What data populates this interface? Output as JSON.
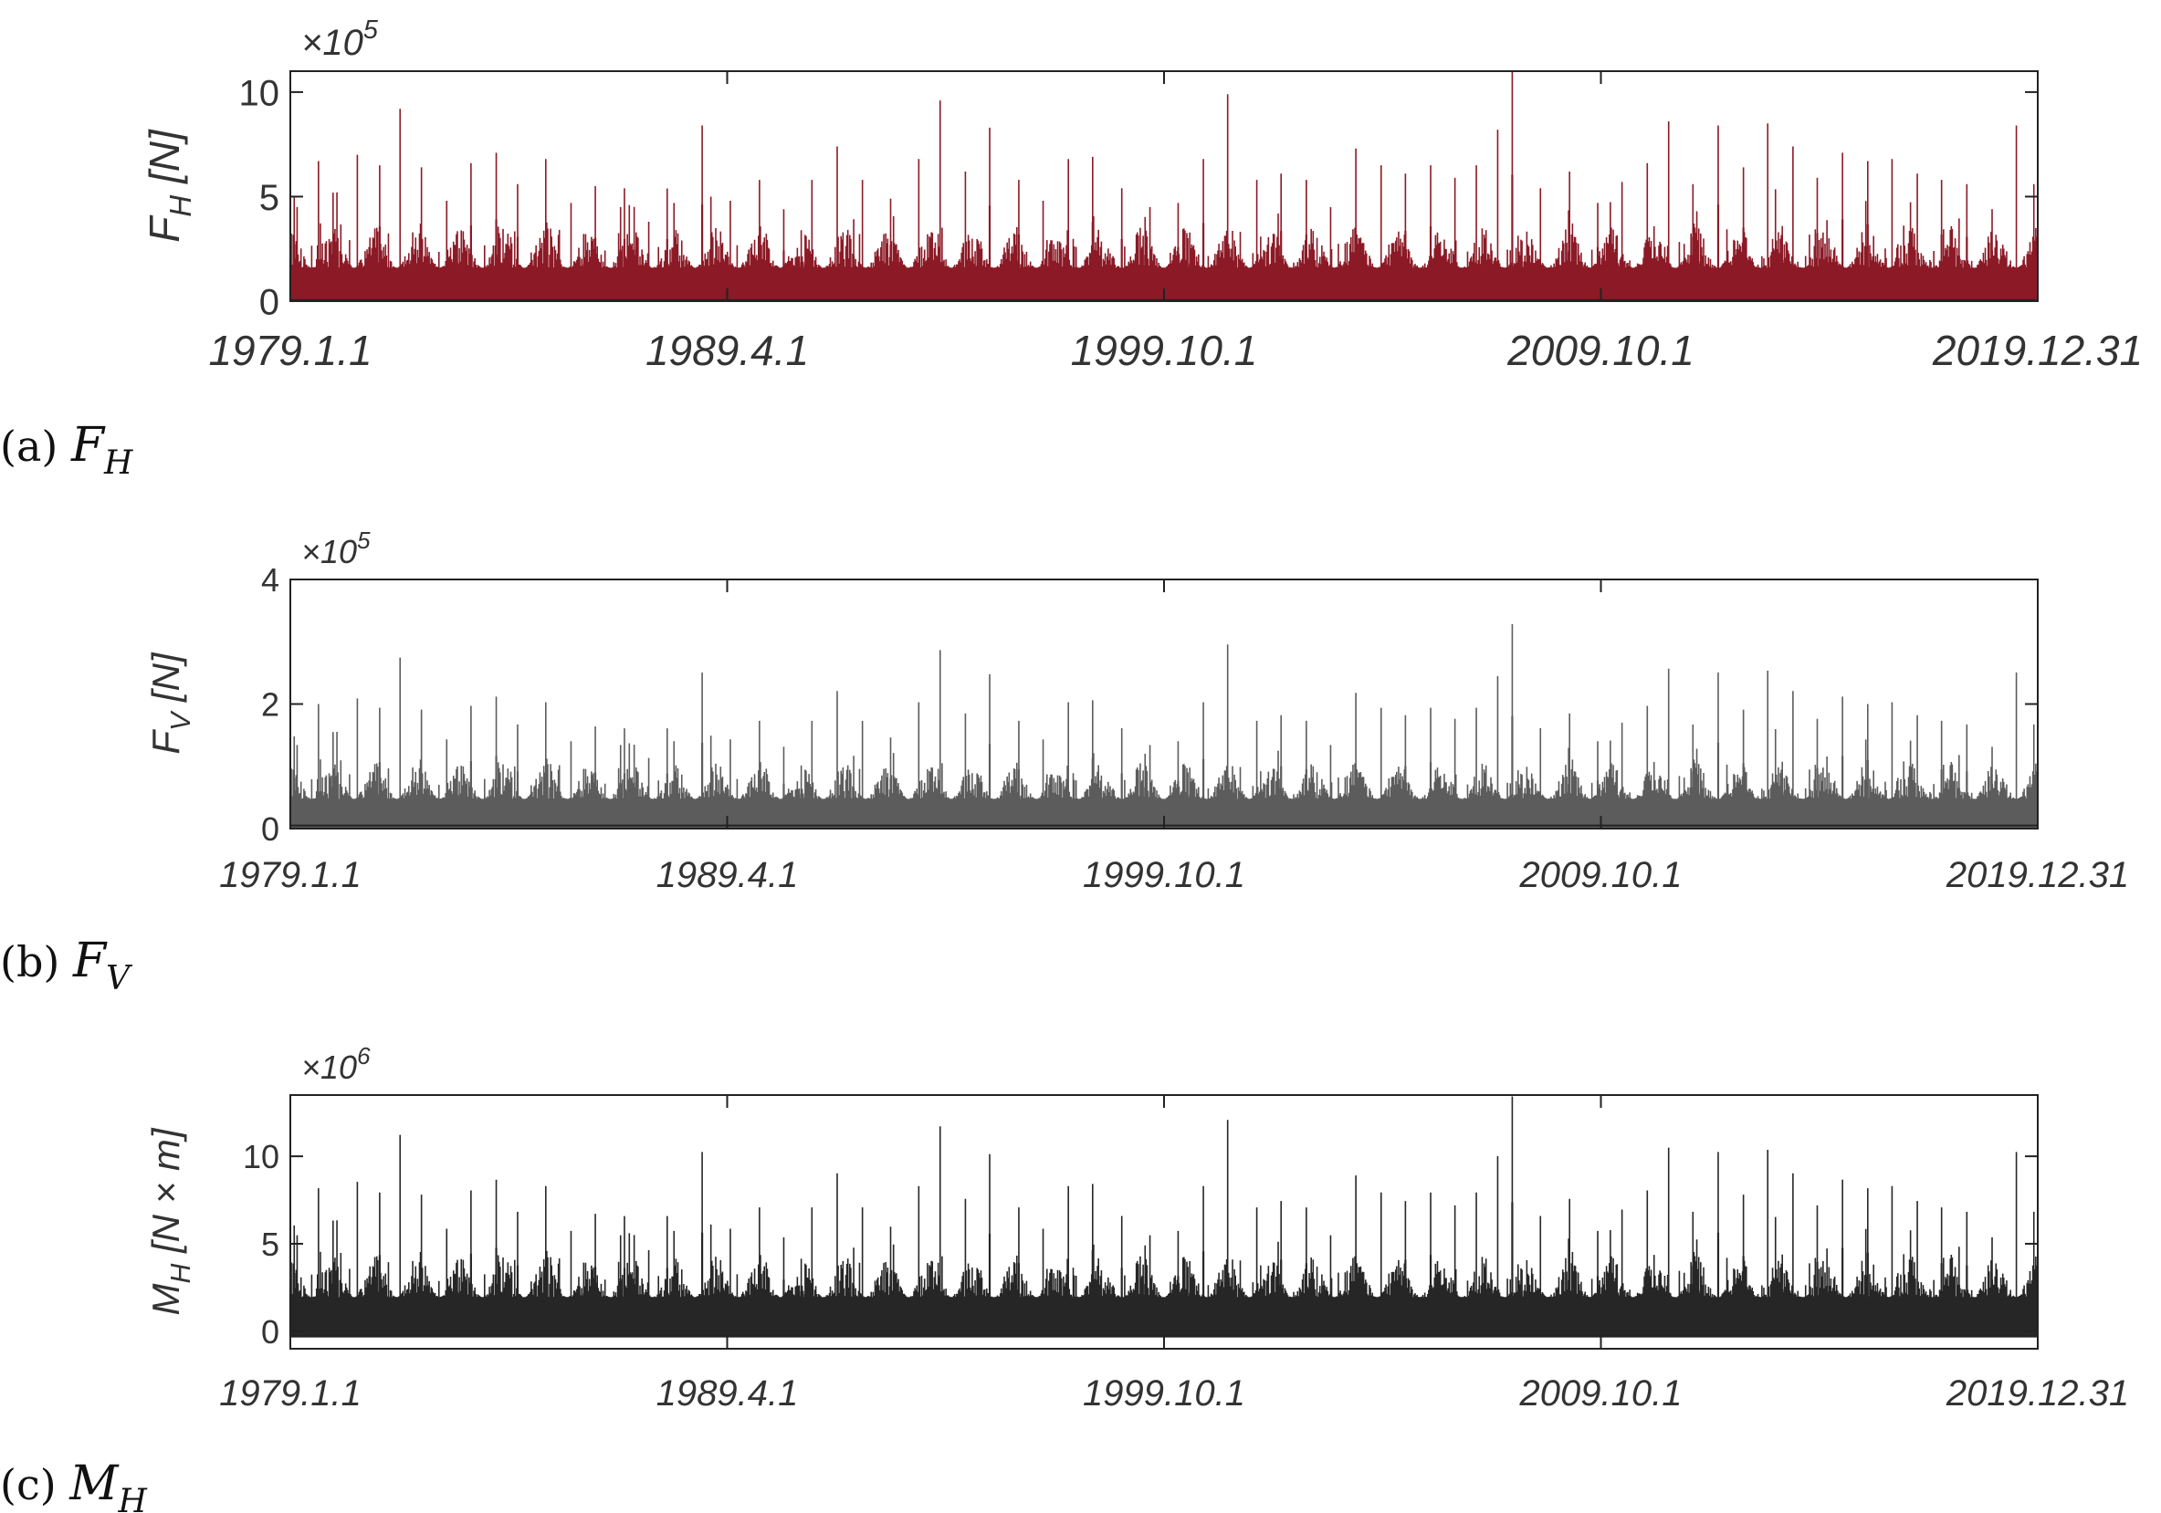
{
  "chart_data": [
    {
      "type": "line",
      "panel": "a",
      "caption": {
        "label": "(a)",
        "symbol": "F",
        "subscript": "H"
      },
      "ylabel": {
        "symbol": "F",
        "subscript": "H",
        "unit": "[N]"
      },
      "multiplier": {
        "prefix": "×10",
        "exponent": "5"
      },
      "ylim": [
        0,
        11
      ],
      "yticks": [
        0,
        5,
        10
      ],
      "xlim": [
        "1979.1.1",
        "2019.12.31"
      ],
      "xticks": [
        "1979.1.1",
        "1989.4.1",
        "1999.10.1",
        "2009.10.1",
        "2019.12.31"
      ],
      "color": "#8b1a26",
      "series_scale": 1.0,
      "baseline_base": 0.5,
      "peaks": [
        {
          "x": "1979.3.1",
          "y": 4.5
        },
        {
          "x": "1979.9.1",
          "y": 6.7
        },
        {
          "x": "1980.2.1",
          "y": 5.2
        },
        {
          "x": "1980.8.1",
          "y": 7.0
        },
        {
          "x": "1981.2.1",
          "y": 6.5
        },
        {
          "x": "1981.8.1",
          "y": 9.2
        },
        {
          "x": "1982.2.1",
          "y": 6.4
        },
        {
          "x": "1982.9.1",
          "y": 4.8
        },
        {
          "x": "1983.4.1",
          "y": 6.6
        },
        {
          "x": "1983.11.1",
          "y": 7.1
        },
        {
          "x": "1984.5.1",
          "y": 5.6
        },
        {
          "x": "1985.1.1",
          "y": 6.8
        },
        {
          "x": "1985.8.1",
          "y": 4.7
        },
        {
          "x": "1986.3.1",
          "y": 5.5
        },
        {
          "x": "1986.10.1",
          "y": 4.5
        },
        {
          "x": "1987.6.1",
          "y": 3.8
        },
        {
          "x": "1988.1.1",
          "y": 4.7
        },
        {
          "x": "1988.9.1",
          "y": 8.4
        },
        {
          "x": "1989.5.1",
          "y": 4.8
        },
        {
          "x": "1990.1.1",
          "y": 5.8
        },
        {
          "x": "1990.8.1",
          "y": 4.4
        },
        {
          "x": "1991.4.1",
          "y": 5.8
        },
        {
          "x": "1991.11.1",
          "y": 7.4
        },
        {
          "x": "1992.6.1",
          "y": 5.8
        },
        {
          "x": "1993.2.1",
          "y": 4.9
        },
        {
          "x": "1993.10.1",
          "y": 6.8
        },
        {
          "x": "1994.4.1",
          "y": 9.6
        },
        {
          "x": "1994.11.1",
          "y": 6.2
        },
        {
          "x": "1995.6.1",
          "y": 8.3
        },
        {
          "x": "1996.2.1",
          "y": 5.8
        },
        {
          "x": "1996.9.1",
          "y": 4.8
        },
        {
          "x": "1997.4.1",
          "y": 6.8
        },
        {
          "x": "1997.11.1",
          "y": 6.9
        },
        {
          "x": "1998.7.1",
          "y": 5.4
        },
        {
          "x": "1999.3.1",
          "y": 4.5
        },
        {
          "x": "1999.11.1",
          "y": 4.7
        },
        {
          "x": "2000.6.1",
          "y": 6.8
        },
        {
          "x": "2001.1.1",
          "y": 9.9
        },
        {
          "x": "2001.9.1",
          "y": 5.8
        },
        {
          "x": "2002.4.1",
          "y": 6.1
        },
        {
          "x": "2002.11.1",
          "y": 5.8
        },
        {
          "x": "2003.6.1",
          "y": 4.5
        },
        {
          "x": "2004.1.1",
          "y": 7.3
        },
        {
          "x": "2004.8.1",
          "y": 6.5
        },
        {
          "x": "2005.3.1",
          "y": 6.1
        },
        {
          "x": "2005.10.1",
          "y": 6.5
        },
        {
          "x": "2006.5.1",
          "y": 5.9
        },
        {
          "x": "2006.11.1",
          "y": 6.5
        },
        {
          "x": "2007.5.1",
          "y": 8.2
        },
        {
          "x": "2007.9.1",
          "y": 11.0
        },
        {
          "x": "2008.5.1",
          "y": 5.4
        },
        {
          "x": "2009.1.1",
          "y": 6.2
        },
        {
          "x": "2009.9.1",
          "y": 4.7
        },
        {
          "x": "2010.4.1",
          "y": 5.7
        },
        {
          "x": "2010.11.1",
          "y": 6.6
        },
        {
          "x": "2011.5.1",
          "y": 8.6
        },
        {
          "x": "2011.12.1",
          "y": 5.6
        },
        {
          "x": "2012.7.1",
          "y": 8.4
        },
        {
          "x": "2013.2.1",
          "y": 6.4
        },
        {
          "x": "2013.9.1",
          "y": 8.5
        },
        {
          "x": "2014.4.1",
          "y": 7.4
        },
        {
          "x": "2014.11.1",
          "y": 5.9
        },
        {
          "x": "2015.6.1",
          "y": 7.1
        },
        {
          "x": "2016.1.1",
          "y": 6.7
        },
        {
          "x": "2016.8.1",
          "y": 6.8
        },
        {
          "x": "2017.3.1",
          "y": 6.1
        },
        {
          "x": "2017.10.1",
          "y": 5.8
        },
        {
          "x": "2018.5.1",
          "y": 5.6
        },
        {
          "x": "2018.12.1",
          "y": 4.4
        },
        {
          "x": "2019.7.1",
          "y": 8.4
        },
        {
          "x": "2019.12.1",
          "y": 5.6
        }
      ]
    },
    {
      "type": "line",
      "panel": "b",
      "caption": {
        "label": "(b)",
        "symbol": "F",
        "subscript": "V"
      },
      "ylabel": {
        "symbol": "F",
        "subscript": "V",
        "unit": "[N]"
      },
      "multiplier": {
        "prefix": "×10",
        "exponent": "5"
      },
      "ylim": [
        0,
        4
      ],
      "yticks": [
        0,
        2,
        4
      ],
      "xlim": [
        "1979.1.1",
        "2019.12.31"
      ],
      "xticks": [
        "1979.1.1",
        "1989.4.1",
        "1999.10.1",
        "2009.10.1",
        "2019.12.31"
      ],
      "color": "#5c5c5c",
      "series_scale": 0.2985,
      "baseline_base": 0.2,
      "peaks": []
    },
    {
      "type": "line",
      "panel": "c",
      "caption": {
        "label": "(c)",
        "symbol": "M",
        "subscript": "H"
      },
      "ylabel": {
        "symbol": "M",
        "subscript": "H",
        "unit": "[N × m]"
      },
      "multiplier": {
        "prefix": "×10",
        "exponent": "6"
      },
      "ylim": [
        -1,
        13.5
      ],
      "yticks": [
        0,
        5,
        10
      ],
      "xlim": [
        "1979.1.1",
        "2019.12.31"
      ],
      "xticks": [
        "1979.1.1",
        "1989.4.1",
        "1999.10.1",
        "2009.10.1",
        "2019.12.31"
      ],
      "color": "#262626",
      "series_scale": 1.22,
      "baseline_base": 0.4,
      "peaks": []
    }
  ]
}
